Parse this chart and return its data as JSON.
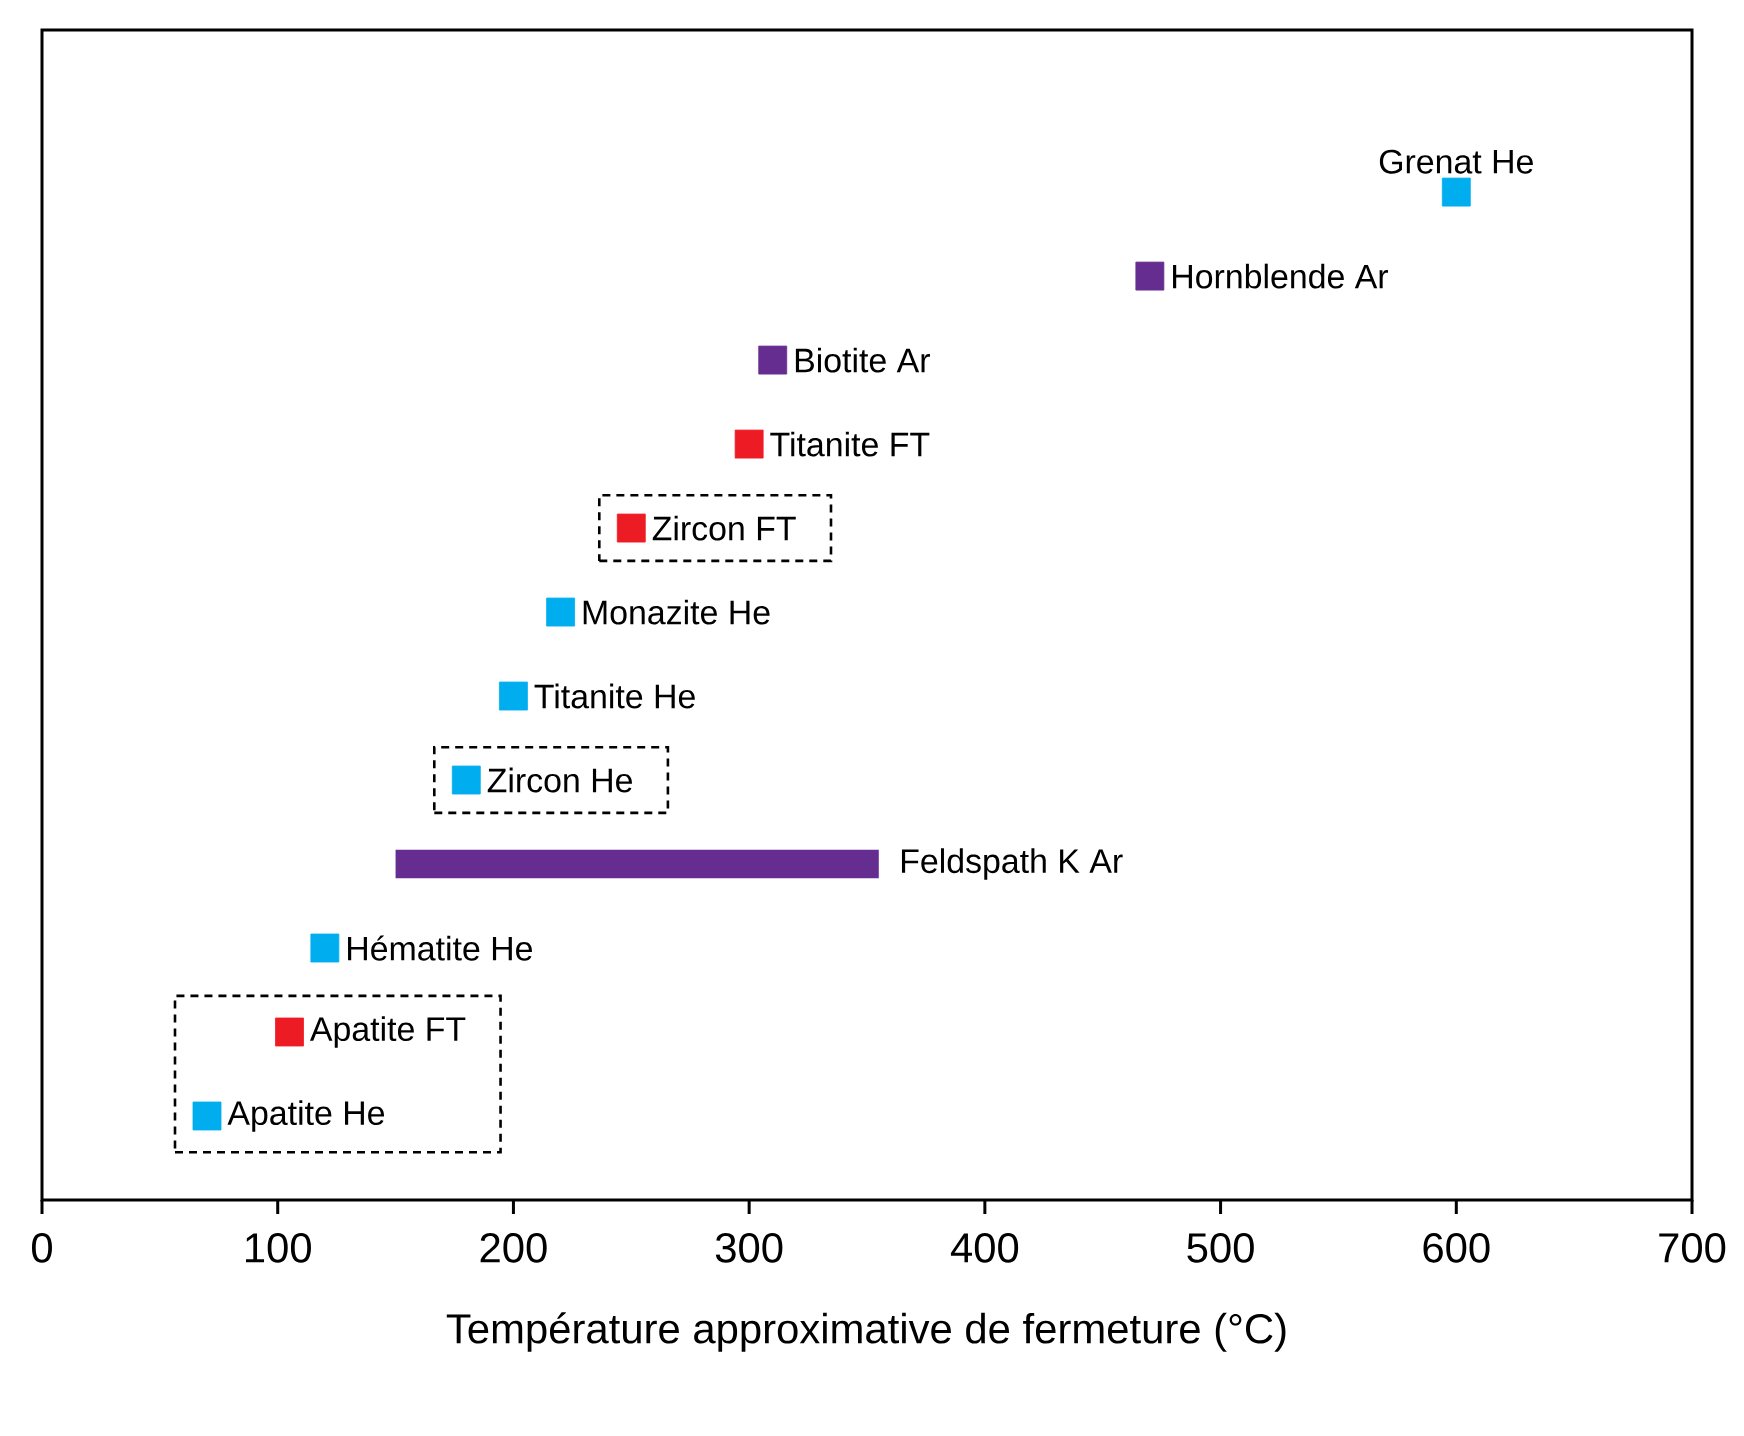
{
  "chart_data": {
    "type": "bar",
    "orientation": "horizontal",
    "xlabel": "Température approximative de fermeture (°C)",
    "categories": [
      "Grenat He",
      "Hornblende Ar",
      "Biotite Ar",
      "Titanite FT",
      "Zircon FT",
      "Monazite He",
      "Titanite He",
      "Zircon He",
      "Feldspath K Ar",
      "Hématite He",
      "Apatite FT",
      "Apatite He"
    ],
    "series": [
      {
        "type": "scatter",
        "values": [
          600,
          470,
          310,
          300,
          250,
          220,
          200,
          180,
          null,
          120,
          105,
          70
        ],
        "colors": [
          "#00aeef",
          "#662d91",
          "#662d91",
          "#ed1c24",
          "#ed1c24",
          "#00aeef",
          "#00aeef",
          "#00aeef",
          null,
          "#00aeef",
          "#ed1c24",
          "#00aeef"
        ]
      },
      {
        "color": "#662d91",
        "values": [
          null,
          null,
          null,
          null,
          null,
          null,
          null,
          null,
          205,
          null,
          null,
          null
        ],
        "base": [
          null,
          null,
          null,
          null,
          null,
          null,
          null,
          null,
          150,
          null,
          null,
          null
        ]
      }
    ],
    "xlim": [
      0,
      700
    ],
    "xticks": [
      0,
      100,
      200,
      300,
      400,
      500,
      600,
      700
    ],
    "tick_labels": "x",
    "marker": "square",
    "grid": false
  }
}
